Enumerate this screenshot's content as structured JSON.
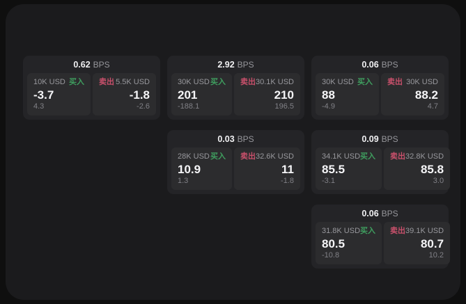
{
  "labels": {
    "bps": "BPS",
    "buy": "买入",
    "sell": "卖出"
  },
  "colors": {
    "buy": "#3f9e5f",
    "sell": "#c8506b",
    "panel_bg": "#1b1b1d",
    "card_bg": "#242427",
    "tile_bg": "#2c2c2e"
  },
  "cards": [
    {
      "bps": "0.62",
      "row": 1,
      "col": 1,
      "buy": {
        "amount": "10K USD",
        "price": "-3.7",
        "delta": "4.3"
      },
      "sell": {
        "amount": "5.5K USD",
        "price": "-1.8",
        "delta": "-2.6"
      }
    },
    {
      "bps": "2.92",
      "row": 1,
      "col": 2,
      "buy": {
        "amount": "30K USD",
        "price": "201",
        "delta": "-188.1"
      },
      "sell": {
        "amount": "30.1K USD",
        "price": "210",
        "delta": "196.5"
      }
    },
    {
      "bps": "0.06",
      "row": 1,
      "col": 3,
      "buy": {
        "amount": "30K USD",
        "price": "88",
        "delta": "-4.9"
      },
      "sell": {
        "amount": "30K USD",
        "price": "88.2",
        "delta": "4.7"
      }
    },
    {
      "bps": "0.03",
      "row": 2,
      "col": 2,
      "buy": {
        "amount": "28K USD",
        "price": "10.9",
        "delta": "1.3"
      },
      "sell": {
        "amount": "32.6K USD",
        "price": "11",
        "delta": "-1.8"
      }
    },
    {
      "bps": "0.09",
      "row": 2,
      "col": 3,
      "buy": {
        "amount": "34.1K USD",
        "price": "85.5",
        "delta": "-3.1"
      },
      "sell": {
        "amount": "32.8K USD",
        "price": "85.8",
        "delta": "3.0"
      }
    },
    {
      "bps": "0.06",
      "row": 3,
      "col": 3,
      "buy": {
        "amount": "31.8K USD",
        "price": "80.5",
        "delta": "-10.8"
      },
      "sell": {
        "amount": "39.1K USD",
        "price": "80.7",
        "delta": "10.2"
      }
    }
  ]
}
